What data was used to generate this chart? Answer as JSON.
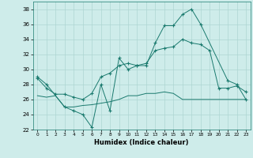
{
  "xlabel": "Humidex (Indice chaleur)",
  "xlim": [
    -0.5,
    23.5
  ],
  "ylim": [
    22,
    39
  ],
  "yticks": [
    22,
    24,
    26,
    28,
    30,
    32,
    34,
    36,
    38
  ],
  "xticks": [
    0,
    1,
    2,
    3,
    4,
    5,
    6,
    7,
    8,
    9,
    10,
    11,
    12,
    13,
    14,
    15,
    16,
    17,
    18,
    19,
    20,
    21,
    22,
    23
  ],
  "bg_color": "#ceecea",
  "line_color": "#1a7a6e",
  "grid_color": "#aed6d2",
  "series1_x": [
    0,
    1,
    3,
    4,
    5,
    6,
    7,
    8,
    9,
    10,
    11,
    12,
    13,
    14,
    15,
    16,
    17,
    18,
    21,
    22,
    23
  ],
  "series1_y": [
    29.0,
    28.0,
    25.0,
    24.5,
    24.0,
    22.3,
    28.0,
    24.5,
    31.5,
    30.0,
    30.5,
    30.5,
    33.5,
    35.8,
    35.8,
    37.3,
    38.0,
    36.0,
    28.5,
    28.0,
    26.0
  ],
  "series2_x": [
    0,
    1,
    2,
    3,
    4,
    5,
    6,
    7,
    8,
    9,
    10,
    11,
    12,
    13,
    14,
    15,
    16,
    17,
    18,
    19,
    20,
    21,
    22,
    23
  ],
  "series2_y": [
    28.8,
    27.5,
    26.7,
    26.7,
    26.3,
    26.0,
    26.8,
    29.0,
    29.5,
    30.5,
    30.8,
    30.5,
    30.8,
    32.5,
    32.8,
    33.0,
    34.0,
    33.5,
    33.3,
    32.5,
    27.5,
    27.5,
    27.8,
    27.0
  ],
  "series3_x": [
    0,
    1,
    2,
    3,
    4,
    5,
    6,
    7,
    8,
    9,
    10,
    11,
    12,
    13,
    14,
    15,
    16,
    17,
    18,
    19,
    20,
    21,
    22,
    23
  ],
  "series3_y": [
    26.5,
    26.3,
    26.5,
    25.0,
    25.0,
    25.2,
    25.3,
    25.5,
    25.7,
    26.0,
    26.5,
    26.5,
    26.8,
    26.8,
    27.0,
    26.8,
    26.0,
    26.0,
    26.0,
    26.0,
    26.0,
    26.0,
    26.0,
    26.0
  ]
}
